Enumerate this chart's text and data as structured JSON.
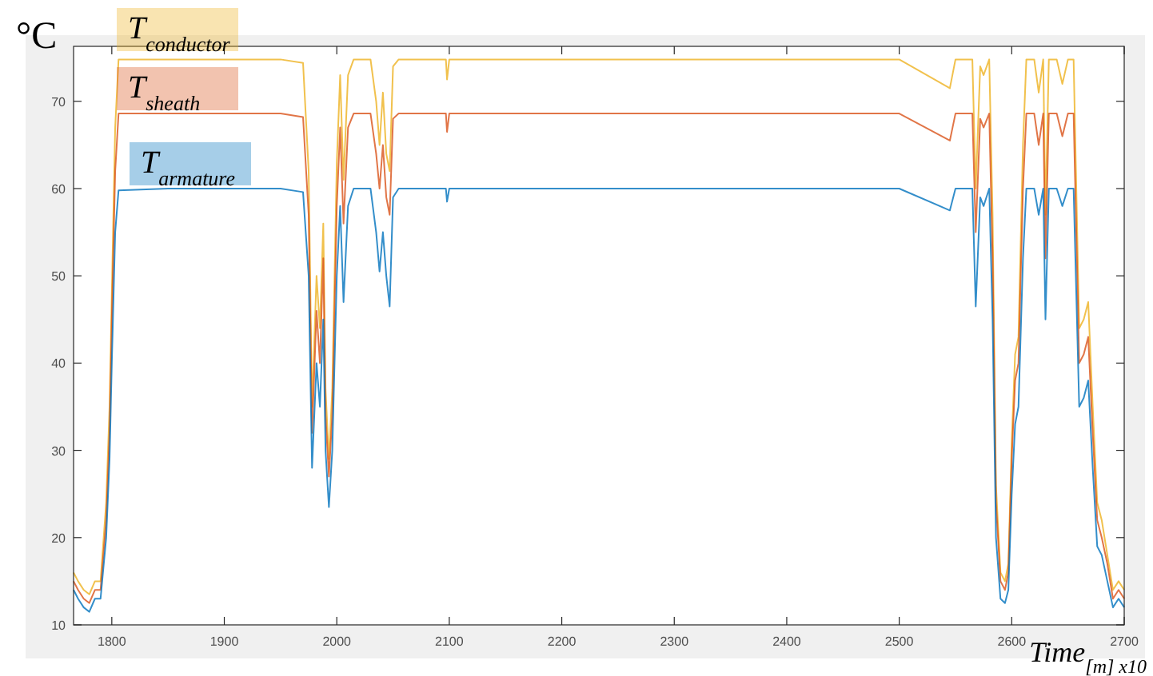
{
  "chart_data": {
    "type": "line",
    "ylabel": "°C",
    "xlabel": "Time$_{[m] x10}$",
    "xlim": [
      1766,
      2700
    ],
    "xticks": [
      1800,
      1900,
      2000,
      2100,
      2200,
      2300,
      2400,
      2500,
      2600,
      2700
    ],
    "ylim": [
      10,
      76.3
    ],
    "yticks": [
      10,
      20,
      30,
      40,
      50,
      60,
      70
    ],
    "grid": false,
    "legend": "top left",
    "marker": "none",
    "line_style": "solid",
    "x": [
      1766,
      1770,
      1775,
      1780,
      1785,
      1790,
      1795,
      1798,
      1800,
      1803,
      1806,
      1850,
      1900,
      1950,
      1970,
      1975,
      1978,
      1982,
      1985,
      1988,
      1990,
      1993,
      1996,
      2000,
      2003,
      2006,
      2010,
      2015,
      2030,
      2035,
      2038,
      2041,
      2044,
      2047,
      2050,
      2055,
      2097,
      2098,
      2100,
      2200,
      2300,
      2400,
      2500,
      2545,
      2550,
      2565,
      2568,
      2572,
      2575,
      2580,
      2583,
      2586,
      2590,
      2594,
      2597,
      2600,
      2603,
      2606,
      2610,
      2613,
      2620,
      2624,
      2628,
      2630,
      2633,
      2640,
      2645,
      2650,
      2655,
      2660,
      2664,
      2668,
      2672,
      2676,
      2680,
      2685,
      2690,
      2695,
      2700
    ],
    "series": [
      {
        "name": "T$_{conductor}$",
        "color": "#edb120",
        "values": [
          16,
          15,
          14,
          13.5,
          15,
          15,
          24,
          35,
          48,
          67,
          74.8,
          74.8,
          74.8,
          74.8,
          74.4,
          62,
          35,
          50,
          44,
          56,
          37,
          29,
          37,
          63,
          73,
          61,
          73,
          74.8,
          74.8,
          70,
          65,
          71,
          64,
          62,
          74,
          74.8,
          74.8,
          72.5,
          74.8,
          74.8,
          74.8,
          74.8,
          74.8,
          71.5,
          74.8,
          74.8,
          60,
          74,
          73,
          74.8,
          57,
          26,
          16,
          15,
          17,
          31,
          41,
          43,
          65,
          74.8,
          74.8,
          71,
          74.8,
          57,
          74.8,
          74.8,
          72,
          74.8,
          74.8,
          44,
          45,
          47,
          35,
          24,
          22,
          18,
          14,
          15,
          14
        ]
      },
      {
        "name": "T$_{sheath}$",
        "color": "#d95319",
        "values": [
          15,
          14,
          13,
          12.5,
          14,
          14,
          22,
          32,
          45,
          62,
          68.6,
          68.6,
          68.6,
          68.6,
          68.2,
          57,
          32,
          46,
          40,
          52,
          34,
          27,
          34,
          58,
          67,
          56,
          67,
          68.6,
          68.6,
          64,
          60,
          65,
          59,
          57,
          68,
          68.6,
          68.6,
          66.5,
          68.6,
          68.6,
          68.6,
          68.6,
          68.6,
          65.5,
          68.6,
          68.6,
          55,
          68,
          67,
          68.6,
          52,
          24,
          15,
          14,
          16,
          29,
          38,
          40,
          60,
          68.6,
          68.6,
          65,
          68.6,
          52,
          68.6,
          68.6,
          66,
          68.6,
          68.6,
          40,
          41,
          43,
          32,
          22,
          20,
          17,
          13,
          14,
          13
        ]
      },
      {
        "name": "T$_{armature}$",
        "color": "#0072bd",
        "values": [
          14,
          13,
          12,
          11.5,
          13,
          13,
          20,
          29,
          40,
          55,
          59.8,
          60,
          60,
          60,
          59.6,
          50,
          28,
          40,
          35,
          45,
          30,
          23.5,
          30,
          50,
          58,
          47,
          58,
          60,
          60,
          55,
          50.5,
          55,
          50,
          46.5,
          59,
          60,
          60,
          58.5,
          60,
          60,
          60,
          60,
          60,
          57.5,
          60,
          60,
          46.5,
          59,
          58,
          60,
          45,
          20,
          13,
          12.5,
          14,
          25,
          33,
          35,
          52,
          60,
          60,
          57,
          60,
          45,
          60,
          60,
          58,
          60,
          60,
          35,
          36,
          38,
          28,
          19,
          18,
          15,
          12,
          13,
          12
        ]
      }
    ]
  }
}
